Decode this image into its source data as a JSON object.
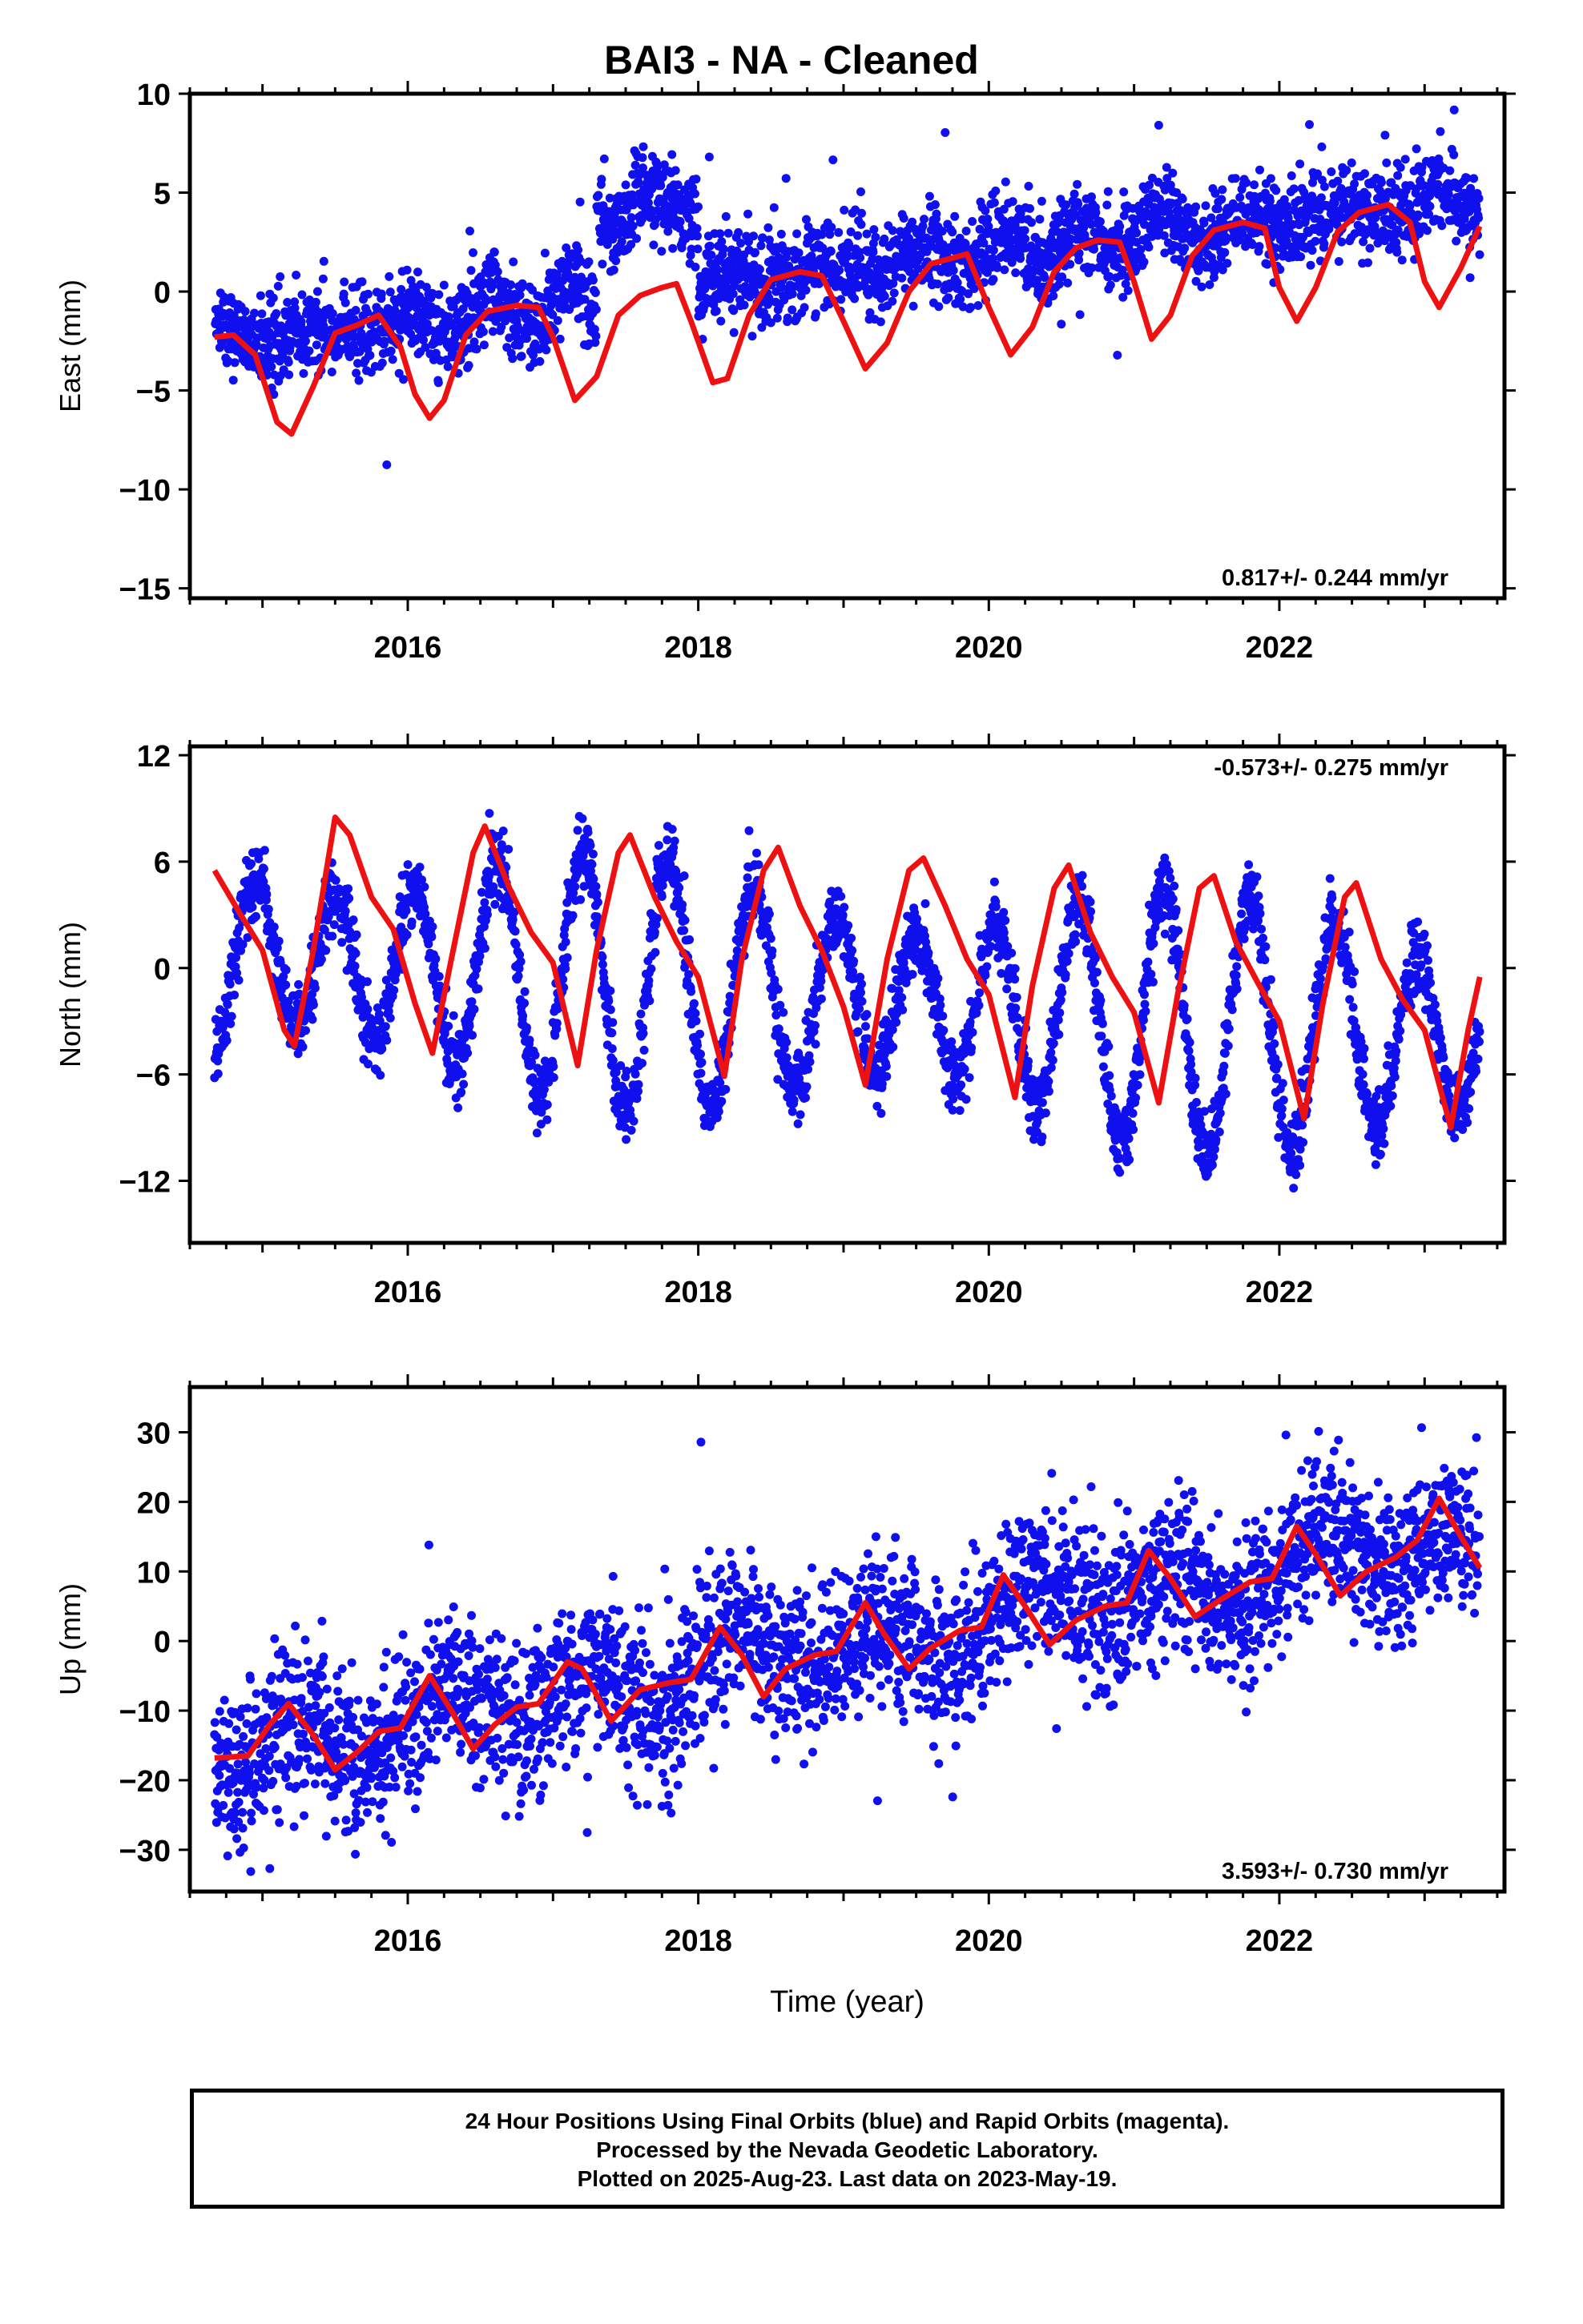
{
  "title": "BAI3  - NA - Cleaned",
  "colors": {
    "points": "#1010ee",
    "fit": "#ee1111"
  },
  "chart_data": [
    {
      "type": "scatter",
      "title": "BAI3  - NA - Cleaned",
      "ylabel": "East (mm)",
      "xlim": [
        2014.5,
        2023.55
      ],
      "ylim": [
        -15.5,
        10
      ],
      "yticks": [
        10,
        5,
        0,
        -5,
        -10,
        -15
      ],
      "xticks": [
        2016,
        2018,
        2020,
        2022
      ],
      "rate": "0.817+/- 0.244 mm/yr",
      "rate_pos": "bottom-right",
      "model": {
        "offset": -2.6,
        "trend": 0.817,
        "start": 2014.67,
        "end": 2023.38,
        "terms": [
          [
            0.6,
            1.7,
            0.5
          ],
          [
            0.4,
            2.0,
            1.0
          ]
        ],
        "steps": [
          [
            2016.2,
            0.0
          ],
          [
            2017.3,
            4.5
          ],
          [
            2018.0,
            -4.2
          ]
        ],
        "noise": 1.1
      },
      "fit": [
        [
          2014.67,
          -2.3
        ],
        [
          2014.8,
          -2.2
        ],
        [
          2014.95,
          -3.2
        ],
        [
          2015.1,
          -6.6
        ],
        [
          2015.2,
          -7.2
        ],
        [
          2015.35,
          -4.8
        ],
        [
          2015.5,
          -2.1
        ],
        [
          2015.65,
          -1.7
        ],
        [
          2015.8,
          -1.2
        ],
        [
          2015.95,
          -2.8
        ],
        [
          2016.05,
          -5.2
        ],
        [
          2016.15,
          -6.4
        ],
        [
          2016.25,
          -5.5
        ],
        [
          2016.4,
          -2.2
        ],
        [
          2016.55,
          -1.0
        ],
        [
          2016.75,
          -0.7
        ],
        [
          2016.9,
          -0.8
        ],
        [
          2017.0,
          -2.3
        ],
        [
          2017.15,
          -5.5
        ],
        [
          2017.3,
          -4.3
        ],
        [
          2017.45,
          -1.2
        ],
        [
          2017.6,
          -0.2
        ],
        [
          2017.75,
          0.2
        ],
        [
          2017.85,
          0.4
        ],
        [
          2017.95,
          -1.5
        ],
        [
          2018.1,
          -4.6
        ],
        [
          2018.2,
          -4.4
        ],
        [
          2018.35,
          -1.2
        ],
        [
          2018.5,
          0.6
        ],
        [
          2018.7,
          1.0
        ],
        [
          2018.85,
          0.8
        ],
        [
          2019.0,
          -1.5
        ],
        [
          2019.15,
          -3.9
        ],
        [
          2019.3,
          -2.6
        ],
        [
          2019.45,
          0.0
        ],
        [
          2019.6,
          1.4
        ],
        [
          2019.75,
          1.7
        ],
        [
          2019.85,
          1.9
        ],
        [
          2020.0,
          -0.8
        ],
        [
          2020.15,
          -3.2
        ],
        [
          2020.3,
          -1.8
        ],
        [
          2020.45,
          1.0
        ],
        [
          2020.6,
          2.2
        ],
        [
          2020.75,
          2.6
        ],
        [
          2020.9,
          2.5
        ],
        [
          2021.0,
          0.5
        ],
        [
          2021.12,
          -2.4
        ],
        [
          2021.25,
          -1.2
        ],
        [
          2021.4,
          1.8
        ],
        [
          2021.55,
          3.1
        ],
        [
          2021.75,
          3.5
        ],
        [
          2021.9,
          3.2
        ],
        [
          2022.0,
          0.2
        ],
        [
          2022.12,
          -1.5
        ],
        [
          2022.25,
          0.2
        ],
        [
          2022.4,
          3.0
        ],
        [
          2022.55,
          4.0
        ],
        [
          2022.75,
          4.4
        ],
        [
          2022.9,
          3.5
        ],
        [
          2023.0,
          0.5
        ],
        [
          2023.1,
          -0.8
        ],
        [
          2023.25,
          1.2
        ],
        [
          2023.38,
          3.3
        ]
      ]
    },
    {
      "type": "scatter",
      "ylabel": "North (mm)",
      "xlim": [
        2014.5,
        2023.55
      ],
      "ylim": [
        -15.5,
        12.5
      ],
      "yticks": [
        12,
        6,
        0,
        -6,
        -12
      ],
      "xticks": [
        2016,
        2018,
        2020,
        2022
      ],
      "rate": "-0.573+/- 0.275 mm/yr",
      "rate_pos": "top-right",
      "model": {
        "offset": 0.8,
        "trend": -0.573,
        "start": 2014.67,
        "end": 2023.38,
        "terms": [
          [
            5.6,
            1.75,
            0.5
          ],
          [
            1.8,
            1.5,
            1.0
          ]
        ],
        "steps": [],
        "noise": 1.0
      },
      "fit": [
        [
          2014.67,
          5.5
        ],
        [
          2014.85,
          3.0
        ],
        [
          2015.0,
          1.0
        ],
        [
          2015.15,
          -3.5
        ],
        [
          2015.22,
          -4.4
        ],
        [
          2015.35,
          1.0
        ],
        [
          2015.5,
          8.5
        ],
        [
          2015.6,
          7.5
        ],
        [
          2015.75,
          4.0
        ],
        [
          2015.9,
          2.2
        ],
        [
          2016.05,
          -2.0
        ],
        [
          2016.17,
          -4.8
        ],
        [
          2016.3,
          0.5
        ],
        [
          2016.45,
          6.5
        ],
        [
          2016.53,
          8.0
        ],
        [
          2016.7,
          4.5
        ],
        [
          2016.85,
          2.0
        ],
        [
          2017.0,
          0.3
        ],
        [
          2017.17,
          -5.5
        ],
        [
          2017.3,
          1.0
        ],
        [
          2017.45,
          6.5
        ],
        [
          2017.53,
          7.5
        ],
        [
          2017.7,
          4.0
        ],
        [
          2017.85,
          1.5
        ],
        [
          2018.0,
          -0.5
        ],
        [
          2018.18,
          -6.1
        ],
        [
          2018.3,
          0.5
        ],
        [
          2018.45,
          5.5
        ],
        [
          2018.55,
          6.8
        ],
        [
          2018.7,
          3.5
        ],
        [
          2018.85,
          1.0
        ],
        [
          2019.0,
          -2.2
        ],
        [
          2019.15,
          -6.6
        ],
        [
          2019.3,
          0.5
        ],
        [
          2019.45,
          5.5
        ],
        [
          2019.55,
          6.2
        ],
        [
          2019.7,
          3.5
        ],
        [
          2019.85,
          0.5
        ],
        [
          2020.0,
          -1.5
        ],
        [
          2020.18,
          -7.3
        ],
        [
          2020.3,
          -1.0
        ],
        [
          2020.45,
          4.5
        ],
        [
          2020.55,
          5.8
        ],
        [
          2020.7,
          2.0
        ],
        [
          2020.85,
          -0.5
        ],
        [
          2021.0,
          -2.5
        ],
        [
          2021.17,
          -7.6
        ],
        [
          2021.3,
          -1.5
        ],
        [
          2021.45,
          4.5
        ],
        [
          2021.55,
          5.2
        ],
        [
          2021.7,
          1.5
        ],
        [
          2021.85,
          -0.8
        ],
        [
          2022.0,
          -3.0
        ],
        [
          2022.17,
          -8.5
        ],
        [
          2022.3,
          -2.0
        ],
        [
          2022.45,
          4.0
        ],
        [
          2022.53,
          4.8
        ],
        [
          2022.7,
          0.5
        ],
        [
          2022.85,
          -1.8
        ],
        [
          2023.0,
          -3.5
        ],
        [
          2023.18,
          -9.0
        ],
        [
          2023.3,
          -3.5
        ],
        [
          2023.38,
          -0.5
        ]
      ]
    },
    {
      "type": "scatter",
      "ylabel": "Up (mm)",
      "xlabel": "Time (year)",
      "xlim": [
        2014.5,
        2023.55
      ],
      "ylim": [
        -36,
        36.5
      ],
      "yticks": [
        30,
        20,
        10,
        0,
        -10,
        -20,
        -30
      ],
      "xticks": [
        2016,
        2018,
        2020,
        2022
      ],
      "rate": "3.593+/- 0.730 mm/yr",
      "rate_pos": "bottom-right",
      "model": {
        "offset": -16.5,
        "trend": 3.593,
        "start": 2014.67,
        "end": 2023.38,
        "terms": [
          [
            3.8,
            1.0,
            1.0
          ],
          [
            1.5,
            0.5,
            2.0
          ]
        ],
        "steps": [],
        "noise": 5.5
      },
      "fit": [
        [
          2014.67,
          -16.8
        ],
        [
          2014.9,
          -16.5
        ],
        [
          2015.05,
          -12.0
        ],
        [
          2015.18,
          -9.0
        ],
        [
          2015.35,
          -13.5
        ],
        [
          2015.5,
          -18.5
        ],
        [
          2015.65,
          -16.0
        ],
        [
          2015.8,
          -13.0
        ],
        [
          2015.95,
          -12.5
        ],
        [
          2016.15,
          -5.0
        ],
        [
          2016.3,
          -10.0
        ],
        [
          2016.45,
          -15.5
        ],
        [
          2016.6,
          -12.0
        ],
        [
          2016.75,
          -9.5
        ],
        [
          2016.9,
          -9.0
        ],
        [
          2017.1,
          -3.0
        ],
        [
          2017.2,
          -4.0
        ],
        [
          2017.4,
          -11.5
        ],
        [
          2017.6,
          -7.0
        ],
        [
          2017.8,
          -6.0
        ],
        [
          2017.95,
          -5.5
        ],
        [
          2018.15,
          2.0
        ],
        [
          2018.3,
          -2.0
        ],
        [
          2018.45,
          -8.0
        ],
        [
          2018.6,
          -4.0
        ],
        [
          2018.8,
          -2.0
        ],
        [
          2018.95,
          -1.5
        ],
        [
          2019.15,
          5.5
        ],
        [
          2019.28,
          1.0
        ],
        [
          2019.45,
          -4.0
        ],
        [
          2019.6,
          -1.0
        ],
        [
          2019.8,
          1.5
        ],
        [
          2019.95,
          2.0
        ],
        [
          2020.1,
          9.5
        ],
        [
          2020.25,
          5.0
        ],
        [
          2020.42,
          -0.5
        ],
        [
          2020.6,
          3.0
        ],
        [
          2020.8,
          5.0
        ],
        [
          2020.95,
          5.5
        ],
        [
          2021.1,
          13.0
        ],
        [
          2021.25,
          9.0
        ],
        [
          2021.42,
          3.5
        ],
        [
          2021.6,
          6.0
        ],
        [
          2021.8,
          8.5
        ],
        [
          2021.95,
          9.0
        ],
        [
          2022.12,
          16.5
        ],
        [
          2022.25,
          12.5
        ],
        [
          2022.42,
          6.5
        ],
        [
          2022.6,
          10.0
        ],
        [
          2022.8,
          12.0
        ],
        [
          2022.95,
          14.5
        ],
        [
          2023.1,
          20.5
        ],
        [
          2023.25,
          15.0
        ],
        [
          2023.38,
          10.5
        ]
      ]
    }
  ],
  "footer": {
    "line1": "24 Hour Positions Using Final Orbits (blue) and Rapid Orbits (magenta).",
    "line2": "Processed by the Nevada Geodetic Laboratory.",
    "line3": "Plotted on 2025-Aug-23. Last data on 2023-May-19."
  }
}
